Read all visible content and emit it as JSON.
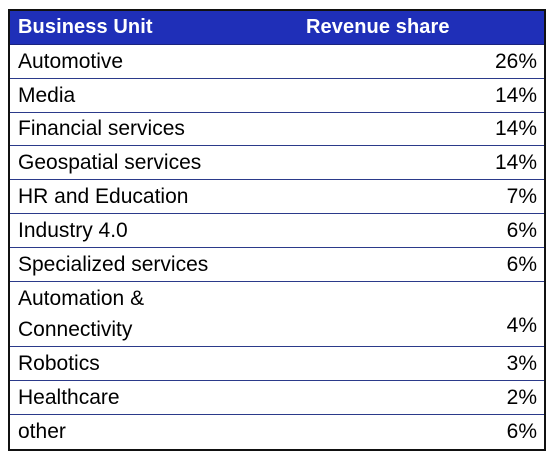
{
  "chart_data": {
    "type": "table",
    "columns": [
      "Business Unit",
      "Revenue share"
    ],
    "rows": [
      {
        "label": "Automotive",
        "value": "26%"
      },
      {
        "label": "Media",
        "value": "14%"
      },
      {
        "label": "Financial services",
        "value": "14%"
      },
      {
        "label": "Geospatial services",
        "value": "14%"
      },
      {
        "label": "HR and Education",
        "value": "7%"
      },
      {
        "label": "Industry 4.0",
        "value": "6%"
      },
      {
        "label": "Specialized services",
        "value": "6%"
      },
      {
        "label_lines": [
          "Automation &",
          "Connectivity"
        ],
        "value": "4%"
      },
      {
        "label": "Robotics",
        "value": "3%"
      },
      {
        "label": "Healthcare",
        "value": "2%"
      },
      {
        "label": "other",
        "value": "6%"
      }
    ]
  },
  "style": {
    "header_bg": "#1f2fb8",
    "header_text": "#ffffff",
    "row_divider": "#2b3a8a"
  }
}
